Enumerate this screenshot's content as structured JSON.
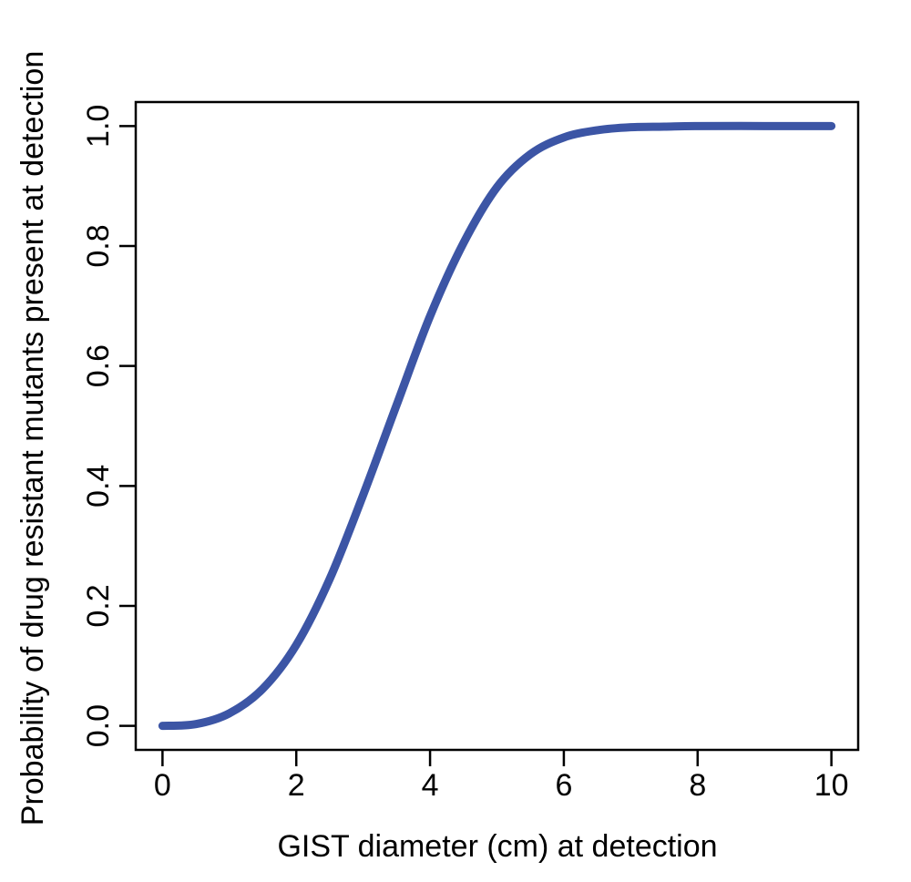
{
  "chart_data": {
    "type": "line",
    "title": "",
    "xlabel": "GIST diameter (cm) at detection",
    "ylabel": "Probability of drug resistant mutants present at detection",
    "xlim": [
      -0.4,
      10.4
    ],
    "ylim": [
      -0.04,
      1.04
    ],
    "xticks": [
      0,
      2,
      4,
      6,
      8,
      10
    ],
    "yticks": [
      0.0,
      0.2,
      0.4,
      0.6,
      0.8,
      1.0
    ],
    "xtick_labels": [
      "0",
      "2",
      "4",
      "6",
      "8",
      "10"
    ],
    "ytick_labels": [
      "0.0",
      "0.2",
      "0.4",
      "0.6",
      "0.8",
      "1.0"
    ],
    "grid": false,
    "series": [
      {
        "color": "#3c55a5",
        "x": [
          0,
          0.5,
          1.0,
          1.5,
          2.0,
          2.5,
          3.0,
          3.5,
          4.0,
          4.5,
          5.0,
          5.5,
          6.0,
          6.5,
          7.0,
          7.5,
          8.0,
          9.0,
          10.0
        ],
        "y": [
          0.0,
          0.003,
          0.021,
          0.062,
          0.135,
          0.245,
          0.385,
          0.535,
          0.683,
          0.805,
          0.898,
          0.953,
          0.981,
          0.993,
          0.998,
          0.999,
          1.0,
          1.0,
          1.0
        ]
      }
    ]
  }
}
